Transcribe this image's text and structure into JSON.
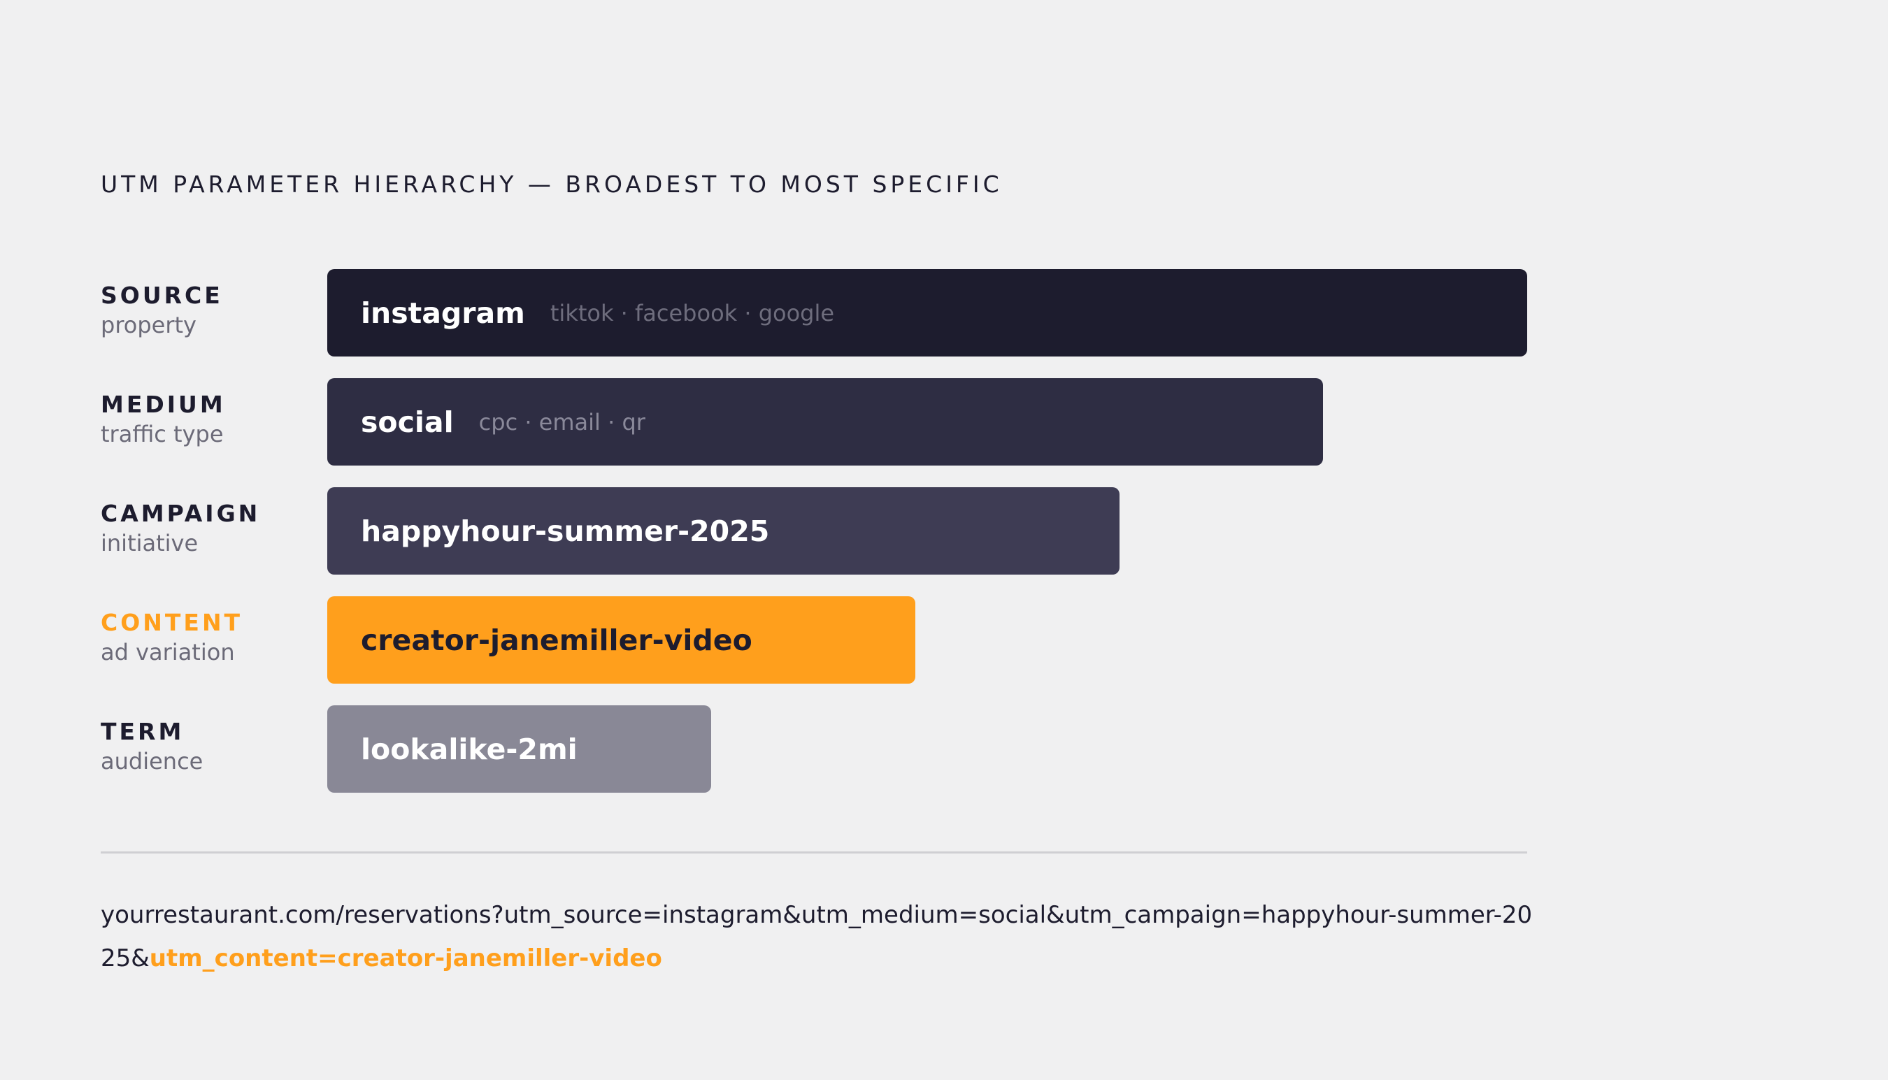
{
  "title": "UTM PARAMETER HIERARCHY — BROADEST TO MOST SPECIFIC",
  "colors": {
    "background": "#f0f0f1",
    "text": "#1d1c2e",
    "muted": "#6b6a78",
    "accent": "#ff9f1c"
  },
  "chart_data": {
    "type": "bar",
    "orientation": "horizontal",
    "rows": [
      {
        "name": "SOURCE",
        "description": "property",
        "value": "instagram",
        "alternatives": "tiktok · facebook · google",
        "level": 1.0,
        "bar_color": "#1d1c2e",
        "value_color": "#ffffff",
        "alt_color": "#6e6d7d",
        "label_color": "#1d1c2e"
      },
      {
        "name": "MEDIUM",
        "description": "traffic type",
        "value": "social",
        "alternatives": "cpc · email · qr",
        "level": 0.83,
        "bar_color": "#2e2d43",
        "value_color": "#ffffff",
        "alt_color": "#8a899a",
        "label_color": "#1d1c2e"
      },
      {
        "name": "CAMPAIGN",
        "description": "initiative",
        "value": "happyhour-summer-2025",
        "alternatives": "",
        "level": 0.66,
        "bar_color": "#3e3c54",
        "value_color": "#ffffff",
        "alt_color": "#9a99aa",
        "label_color": "#1d1c2e"
      },
      {
        "name": "CONTENT",
        "description": "ad variation",
        "value": "creator-janemiller-video",
        "alternatives": "",
        "level": 0.49,
        "bar_color": "#ff9f1c",
        "value_color": "#1d1c2e",
        "alt_color": "#1d1c2e",
        "label_color": "#ff9f1c"
      },
      {
        "name": "TERM",
        "description": "audience",
        "value": "lookalike-2mi",
        "alternatives": "",
        "level": 0.32,
        "bar_color": "#898896",
        "value_color": "#ffffff",
        "alt_color": "#ffffff",
        "label_color": "#1d1c2e"
      }
    ]
  },
  "url": {
    "prefix": "yourrestaurant.com/reservations?utm_source=instagram&utm_medium=social&utm_campaign=happyhour-summer-2025&",
    "highlight": "utm_content=creator-janemiller-video"
  }
}
